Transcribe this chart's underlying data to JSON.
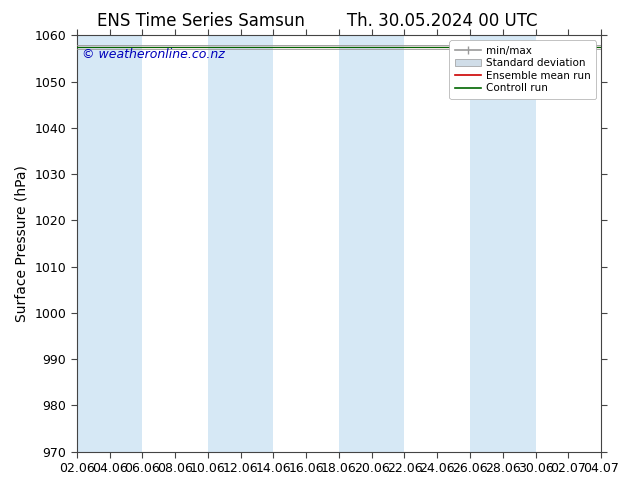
{
  "title": "ENS Time Series Samsun",
  "title2": "Th. 30.05.2024 00 UTC",
  "ylabel": "Surface Pressure (hPa)",
  "watermark": "© weatheronline.co.nz",
  "ylim": [
    970,
    1060
  ],
  "yticks": [
    970,
    980,
    990,
    1000,
    1010,
    1020,
    1030,
    1040,
    1050,
    1060
  ],
  "xtick_labels": [
    "02.06",
    "04.06",
    "06.06",
    "08.06",
    "10.06",
    "12.06",
    "14.06",
    "16.06",
    "18.06",
    "20.06",
    "22.06",
    "24.06",
    "26.06",
    "28.06",
    "30.06",
    "02.07",
    "04.07"
  ],
  "num_xticks": 17,
  "band_color": "#d6e8f5",
  "legend_labels": [
    "min/max",
    "Standard deviation",
    "Ensemble mean run",
    "Controll run"
  ],
  "legend_line_color": "#aaaaaa",
  "legend_patch_color": "#d0dde8",
  "mean_color": "#cc0000",
  "control_color": "#006600",
  "figure_bg": "#ffffff",
  "plot_bg": "#ffffff",
  "title_fontsize": 12,
  "tick_fontsize": 9,
  "ylabel_fontsize": 10,
  "watermark_color": "#0000bb",
  "watermark_fontsize": 9,
  "spine_color": "#444444",
  "data_value": 1057.5
}
